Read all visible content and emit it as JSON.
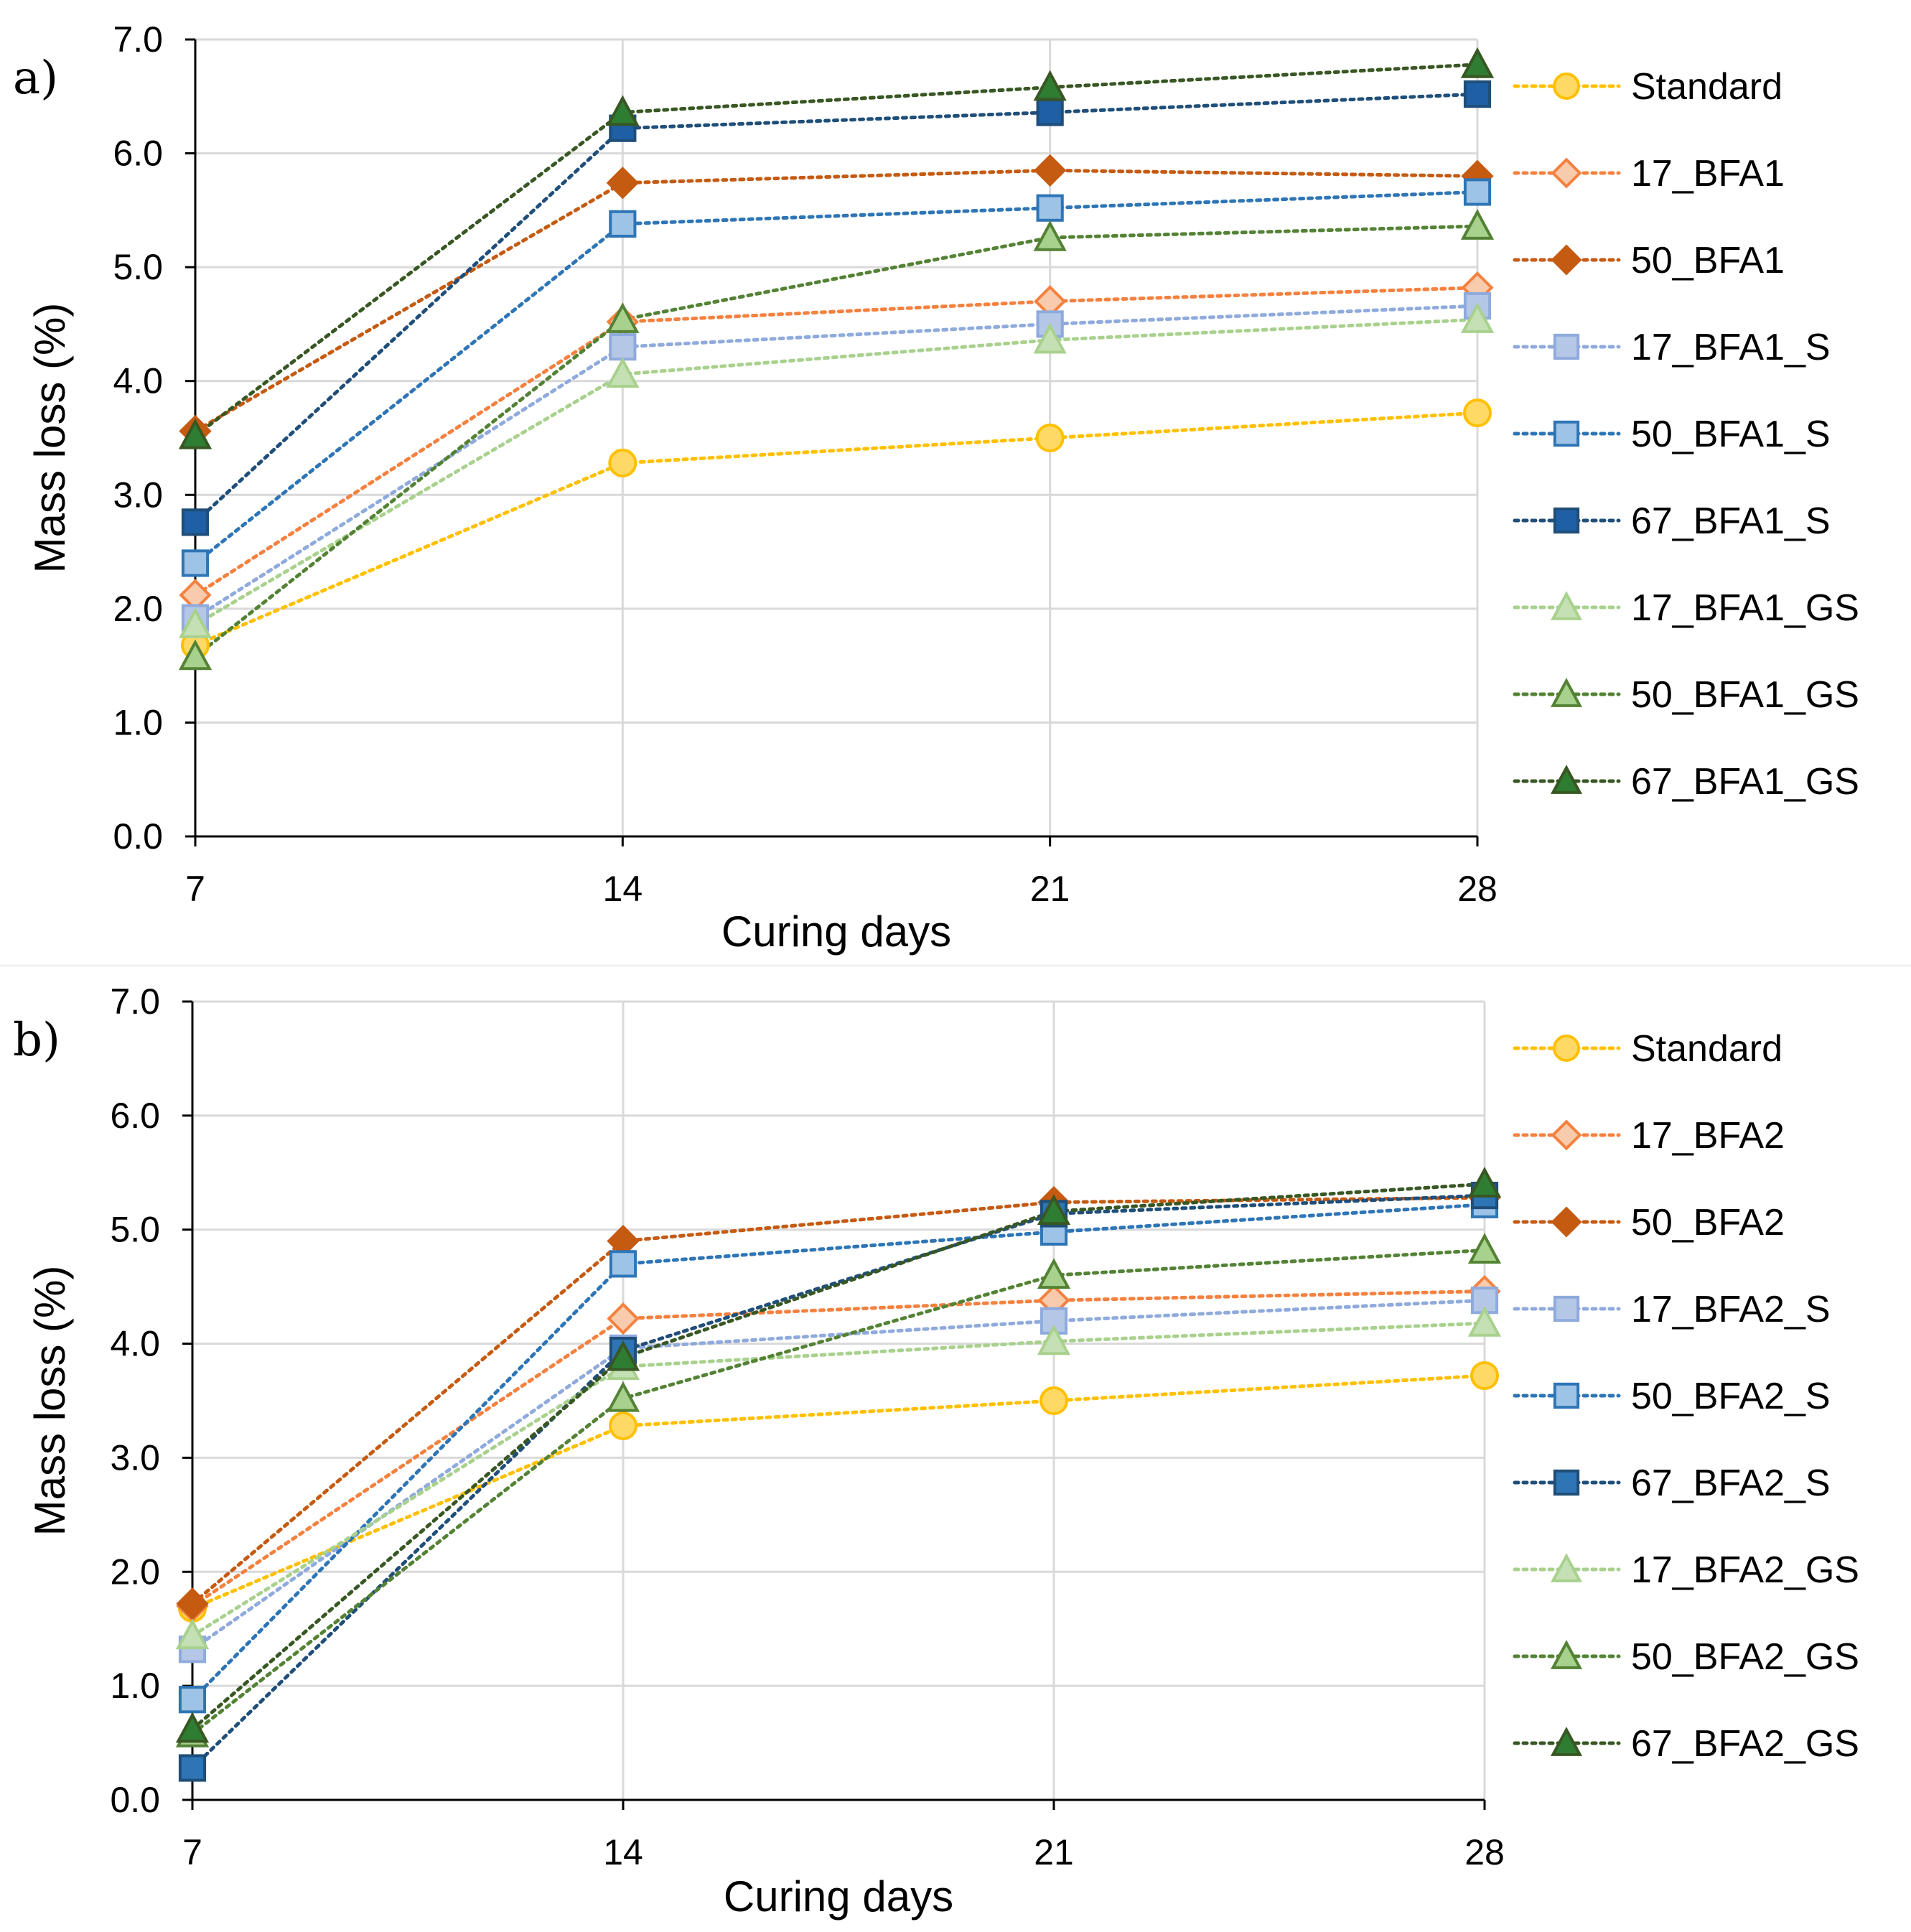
{
  "chart_data": [
    {
      "type": "line",
      "panel_label": "a)",
      "title": "",
      "xlabel": "Curing days",
      "ylabel": "Mass loss (%)",
      "categories": [
        "7",
        "14",
        "21",
        "28"
      ],
      "y_ticks": [
        "0.0",
        "1.0",
        "2.0",
        "3.0",
        "4.0",
        "5.0",
        "6.0",
        "7.0"
      ],
      "ylim": [
        0,
        7
      ],
      "grid": true,
      "legend_position": "right",
      "series": [
        {
          "name": "Standard",
          "values": [
            1.68,
            3.28,
            3.5,
            3.72
          ],
          "color": "#ffc000",
          "fill": "#ffd966",
          "marker": "circle"
        },
        {
          "name": "17_BFA1",
          "values": [
            2.12,
            4.52,
            4.7,
            4.82
          ],
          "color": "#f4813f",
          "fill": "#f8cbad",
          "marker": "diamond"
        },
        {
          "name": "50_BFA1",
          "values": [
            3.56,
            5.74,
            5.85,
            5.8
          ],
          "color": "#c55a11",
          "fill": "#c55a11",
          "marker": "diamond"
        },
        {
          "name": "17_BFA1_S",
          "values": [
            1.92,
            4.3,
            4.5,
            4.66
          ],
          "color": "#8faadc",
          "fill": "#b4c7e7",
          "marker": "square"
        },
        {
          "name": "50_BFA1_S",
          "values": [
            2.4,
            5.38,
            5.52,
            5.66
          ],
          "color": "#2e75b6",
          "fill": "#9dc3e6",
          "marker": "square"
        },
        {
          "name": "67_BFA1_S",
          "values": [
            2.76,
            6.22,
            6.36,
            6.52
          ],
          "color": "#1f4e79",
          "fill": "#1f5fa6",
          "marker": "square"
        },
        {
          "name": "17_BFA1_GS",
          "values": [
            1.86,
            4.06,
            4.36,
            4.54
          ],
          "color": "#a9d18e",
          "fill": "#c5e0b4",
          "marker": "triangle"
        },
        {
          "name": "50_BFA1_GS",
          "values": [
            1.58,
            4.54,
            5.26,
            5.36
          ],
          "color": "#548235",
          "fill": "#a9d18e",
          "marker": "triangle"
        },
        {
          "name": "67_BFA1_GS",
          "values": [
            3.52,
            6.36,
            6.58,
            6.78
          ],
          "color": "#385723",
          "fill": "#2e7d32",
          "marker": "triangle"
        }
      ]
    },
    {
      "type": "line",
      "panel_label": "b)",
      "title": "",
      "xlabel": "Curing days",
      "ylabel": "Mass loss (%)",
      "categories": [
        "7",
        "14",
        "21",
        "28"
      ],
      "y_ticks": [
        "0.0",
        "1.0",
        "2.0",
        "3.0",
        "4.0",
        "5.0",
        "6.0",
        "7.0"
      ],
      "ylim": [
        0,
        7
      ],
      "grid": true,
      "legend_position": "right",
      "series": [
        {
          "name": "Standard",
          "values": [
            1.68,
            3.28,
            3.5,
            3.72
          ],
          "color": "#ffc000",
          "fill": "#ffd966",
          "marker": "circle"
        },
        {
          "name": "17_BFA2",
          "values": [
            1.7,
            4.22,
            4.38,
            4.46
          ],
          "color": "#f4813f",
          "fill": "#f8cbad",
          "marker": "diamond"
        },
        {
          "name": "50_BFA2",
          "values": [
            1.72,
            4.9,
            5.24,
            5.28
          ],
          "color": "#c55a11",
          "fill": "#c55a11",
          "marker": "diamond"
        },
        {
          "name": "17_BFA2_S",
          "values": [
            1.32,
            3.96,
            4.2,
            4.38
          ],
          "color": "#8faadc",
          "fill": "#b4c7e7",
          "marker": "square"
        },
        {
          "name": "50_BFA2_S",
          "values": [
            0.88,
            4.7,
            4.98,
            5.22
          ],
          "color": "#2e75b6",
          "fill": "#9dc3e6",
          "marker": "square"
        },
        {
          "name": "67_BFA2_S",
          "values": [
            0.28,
            3.94,
            5.14,
            5.3
          ],
          "color": "#1f4e79",
          "fill": "#2e75b6",
          "marker": "square"
        },
        {
          "name": "17_BFA2_GS",
          "values": [
            1.44,
            3.8,
            4.02,
            4.18
          ],
          "color": "#a9d18e",
          "fill": "#c5e0b4",
          "marker": "triangle"
        },
        {
          "name": "50_BFA2_GS",
          "values": [
            0.58,
            3.52,
            4.6,
            4.82
          ],
          "color": "#548235",
          "fill": "#a9d18e",
          "marker": "triangle"
        },
        {
          "name": "67_BFA2_GS",
          "values": [
            0.62,
            3.88,
            5.16,
            5.4
          ],
          "color": "#385723",
          "fill": "#2e7d32",
          "marker": "triangle"
        }
      ]
    }
  ]
}
